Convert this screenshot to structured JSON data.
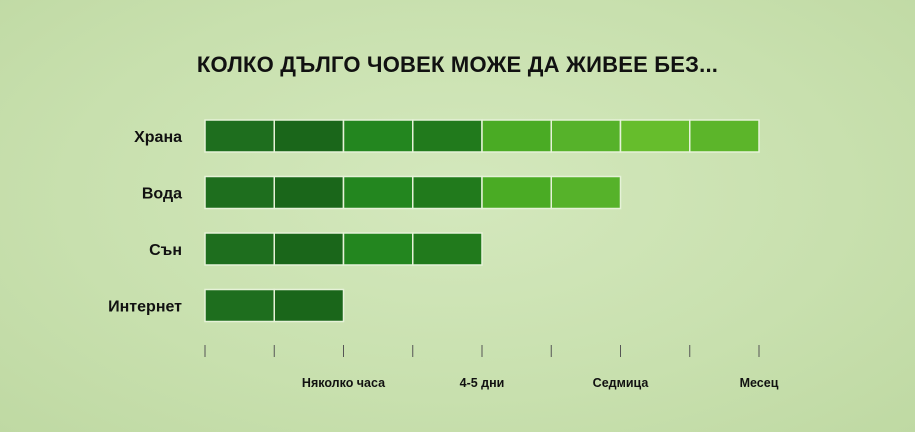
{
  "chart_data": {
    "type": "bar",
    "orientation": "horizontal",
    "title": "КОЛКО ДЪЛГО ЧОВЕК МОЖЕ ДА ЖИВЕЕ БЕЗ...",
    "categories": [
      "Храна",
      "Вода",
      "Сън",
      "Интернет"
    ],
    "values": [
      8,
      6,
      4,
      2
    ],
    "xlim": [
      0,
      8
    ],
    "x_ticks": [
      0,
      1,
      2,
      3,
      4,
      5,
      6,
      7,
      8
    ],
    "x_tick_labels": [
      {
        "at": 2,
        "label": "Няколко часа"
      },
      {
        "at": 4,
        "label": "4-5 дни"
      },
      {
        "at": 6,
        "label": "Седмица"
      },
      {
        "at": 8,
        "label": "Месец"
      }
    ],
    "segment_colors": [
      "#1e6e1e",
      "#1a661a",
      "#23861f",
      "#217a1c",
      "#4aab24",
      "#56b22a",
      "#66bd2c",
      "#5cb52a"
    ],
    "grid": false,
    "legend": "none"
  }
}
